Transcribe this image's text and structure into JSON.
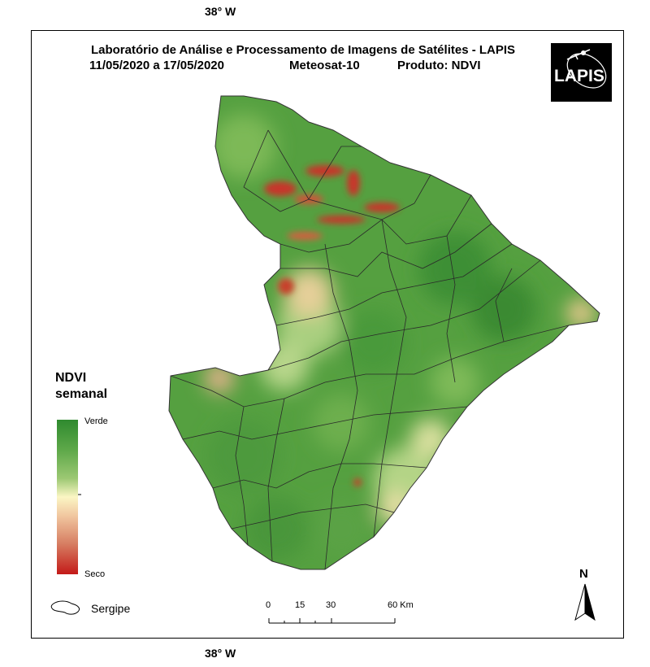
{
  "coords": {
    "top": "38° W",
    "bottom": "38° W"
  },
  "title": {
    "line1": "Laboratório de Análise e Processamento de Imagens de Satélites - LAPIS",
    "dates": "11/05/2020  a  17/05/2020",
    "satellite": "Meteosat-10",
    "product": "Produto: NDVI"
  },
  "logo": {
    "text": "LAPIS"
  },
  "legend": {
    "title_line1": "NDVI",
    "title_line2": "semanal",
    "high_label": "Verde",
    "low_label": "Seco",
    "high_color": "#2f8a2f",
    "low_color": "#c31a18"
  },
  "region_legend": {
    "label": "Sergipe"
  },
  "scale": {
    "ticks": [
      "0",
      "15",
      "30",
      "60 Km"
    ]
  },
  "north": {
    "label": "N"
  },
  "colors": {
    "green_dark": "#3f8f35",
    "green_mid": "#6fae4e",
    "green_light": "#a6cc78",
    "cream": "#f3e7b7",
    "orange": "#e9b18d",
    "red": "#c32a1e"
  }
}
